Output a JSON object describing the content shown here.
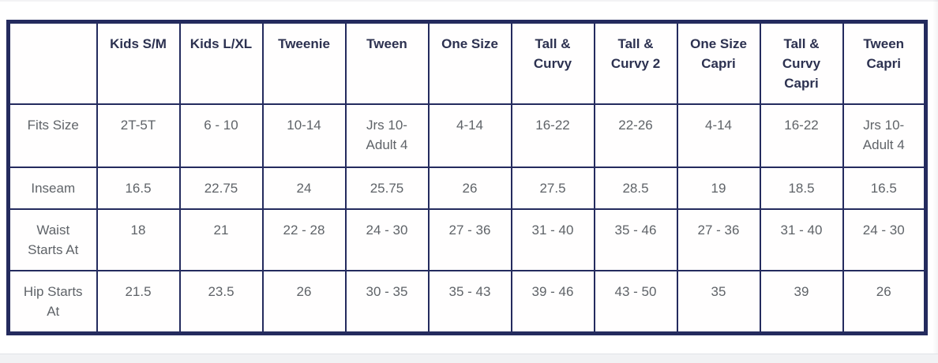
{
  "page": {
    "background": "#ffffff",
    "top_strip_color": "#f3f3f5",
    "footer_bar": {
      "color": "#f1f2f4",
      "edge_color": "#e1e3e7"
    }
  },
  "table": {
    "name": "leggings-size-chart",
    "border_color": "#242b5e",
    "header_text_color": "#2c3150",
    "body_text_color": "#5f6368",
    "columns": [
      "",
      "Kids S/M",
      "Kids L/XL",
      "Tweenie",
      "Tween",
      "One Size",
      "Tall & Curvy",
      "Tall & Curvy 2",
      "One Size Capri",
      "Tall & Curvy Capri",
      "Tween Capri"
    ],
    "rows": [
      {
        "label": "Fits Size",
        "values": [
          "2T-5T",
          "6 - 10",
          "10-14",
          "Jrs 10-Adult 4",
          "4-14",
          "16-22",
          "22-26",
          "4-14",
          "16-22",
          "Jrs 10-Adult 4"
        ]
      },
      {
        "label": "Inseam",
        "values": [
          "16.5",
          "22.75",
          "24",
          "25.75",
          "26",
          "27.5",
          "28.5",
          "19",
          "18.5",
          "16.5"
        ]
      },
      {
        "label": "Waist Starts At",
        "values": [
          "18",
          "21",
          "22 - 28",
          "24 - 30",
          "27 - 36",
          "31 - 40",
          "35 - 46",
          "27 - 36",
          "31 - 40",
          "24 - 30"
        ]
      },
      {
        "label": "Hip Starts At",
        "values": [
          "21.5",
          "23.5",
          "26",
          "30 - 35",
          "35 - 43",
          "39 - 46",
          "43 - 50",
          "35",
          "39",
          "26"
        ]
      }
    ]
  }
}
